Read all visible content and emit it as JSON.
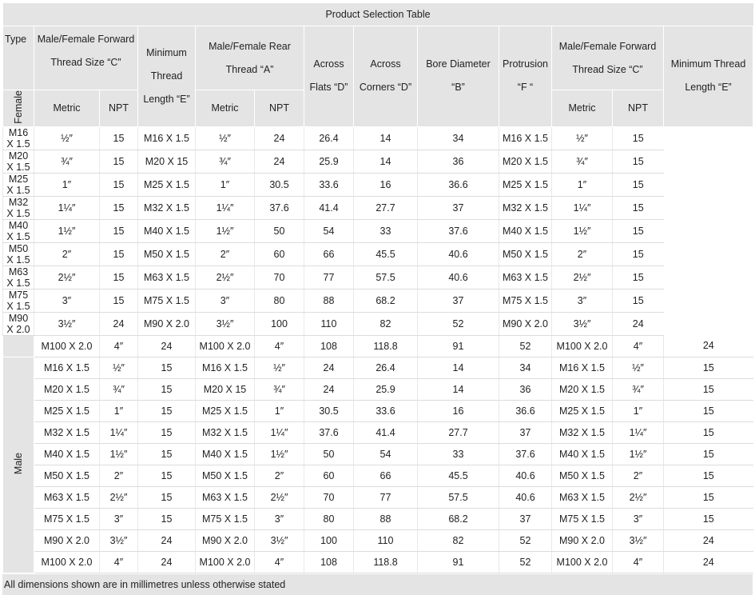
{
  "title": "Product Selection Table",
  "header": {
    "type": "Type",
    "forward_thread": "Male/Female Forward Thread Size “C”",
    "min_thread": "Minimum Thread Length “E”",
    "rear_thread": "Male/Female Rear Thread “A”",
    "across_flats": "Across Flats “D”",
    "across_corners": "Across Corners “D”",
    "bore": "Bore Diameter “B”",
    "protrusion": "Protrusion “F “",
    "forward_thread_2": "Male/Female Forward Thread Size “C”",
    "min_thread_2": "Minimum Thread Length “E”",
    "sub": [
      "Metric",
      "NPT",
      "Metric",
      "NPT",
      "Metric",
      "NPT"
    ]
  },
  "groups": [
    {
      "label": "Female",
      "rows": [
        [
          "M16 X 1.5",
          "½″",
          "15",
          "M16 X 1.5",
          "½″",
          "24",
          "26.4",
          "14",
          "34",
          "M16 X 1.5",
          "½″",
          "15"
        ],
        [
          "M20 X 1.5",
          "¾″",
          "15",
          "M20 X 15",
          "¾″",
          "24",
          "25.9",
          "14",
          "36",
          "M20 X 1.5",
          "¾″",
          "15"
        ],
        [
          "M25 X 1.5",
          "1″",
          "15",
          "M25 X 1.5",
          "1″",
          "30.5",
          "33.6",
          "16",
          "36.6",
          "M25 X 1.5",
          "1″",
          "15"
        ],
        [
          "M32 X 1.5",
          "1¼″",
          "15",
          "M32 X 1.5",
          "1¼″",
          "37.6",
          "41.4",
          "27.7",
          "37",
          "M32 X 1.5",
          "1¼″",
          "15"
        ],
        [
          "M40 X 1.5",
          "1½″",
          "15",
          "M40 X 1.5",
          "1½″",
          "50",
          "54",
          "33",
          "37.6",
          "M40 X 1.5",
          "1½″",
          "15"
        ],
        [
          "M50 X 1.5",
          "2″",
          "15",
          "M50 X 1.5",
          "2″",
          "60",
          "66",
          "45.5",
          "40.6",
          "M50 X 1.5",
          "2″",
          "15"
        ],
        [
          "M63 X 1.5",
          "2½″",
          "15",
          "M63 X 1.5",
          "2½″",
          "70",
          "77",
          "57.5",
          "40.6",
          "M63 X 1.5",
          "2½″",
          "15"
        ],
        [
          "M75 X 1.5",
          "3″",
          "15",
          "M75 X 1.5",
          "3″",
          "80",
          "88",
          "68.2",
          "37",
          "M75 X 1.5",
          "3″",
          "15"
        ],
        [
          "M90 X 2.0",
          "3½″",
          "24",
          "M90 X 2.0",
          "3½″",
          "100",
          "110",
          "82",
          "52",
          "M90 X 2.0",
          "3½″",
          "24"
        ],
        [
          "M100 X 2.0",
          "4″",
          "24",
          "M100 X 2.0",
          "4″",
          "108",
          "118.8",
          "91",
          "52",
          "M100 X 2.0",
          "4″",
          "24"
        ]
      ]
    },
    {
      "label": "Male",
      "rows": [
        [
          "M16 X 1.5",
          "½″",
          "15",
          "M16 X 1.5",
          "½″",
          "24",
          "26.4",
          "14",
          "34",
          "M16 X 1.5",
          "½″",
          "15"
        ],
        [
          "M20 X 1.5",
          "¾″",
          "15",
          "M20 X 15",
          "¾″",
          "24",
          "25.9",
          "14",
          "36",
          "M20 X 1.5",
          "¾″",
          "15"
        ],
        [
          "M25 X 1.5",
          "1″",
          "15",
          "M25 X 1.5",
          "1″",
          "30.5",
          "33.6",
          "16",
          "36.6",
          "M25 X 1.5",
          "1″",
          "15"
        ],
        [
          "M32 X 1.5",
          "1¼″",
          "15",
          "M32 X 1.5",
          "1¼″",
          "37.6",
          "41.4",
          "27.7",
          "37",
          "M32 X 1.5",
          "1¼″",
          "15"
        ],
        [
          "M40 X 1.5",
          "1½″",
          "15",
          "M40 X 1.5",
          "1½″",
          "50",
          "54",
          "33",
          "37.6",
          "M40 X 1.5",
          "1½″",
          "15"
        ],
        [
          "M50 X 1.5",
          "2″",
          "15",
          "M50 X 1.5",
          "2″",
          "60",
          "66",
          "45.5",
          "40.6",
          "M50 X 1.5",
          "2″",
          "15"
        ],
        [
          "M63 X 1.5",
          "2½″",
          "15",
          "M63 X 1.5",
          "2½″",
          "70",
          "77",
          "57.5",
          "40.6",
          "M63 X 1.5",
          "2½″",
          "15"
        ],
        [
          "M75 X 1.5",
          "3″",
          "15",
          "M75 X 1.5",
          "3″",
          "80",
          "88",
          "68.2",
          "37",
          "M75 X 1.5",
          "3″",
          "15"
        ],
        [
          "M90 X 2.0",
          "3½″",
          "24",
          "M90 X 2.0",
          "3½″",
          "100",
          "110",
          "82",
          "52",
          "M90 X 2.0",
          "3½″",
          "24"
        ],
        [
          "M100 X 2.0",
          "4″",
          "24",
          "M100 X 2.0",
          "4″",
          "108",
          "118.8",
          "91",
          "52",
          "M100 X 2.0",
          "4″",
          "24"
        ]
      ]
    }
  ],
  "note": "All dimensions shown are in millimetres unless otherwise stated"
}
